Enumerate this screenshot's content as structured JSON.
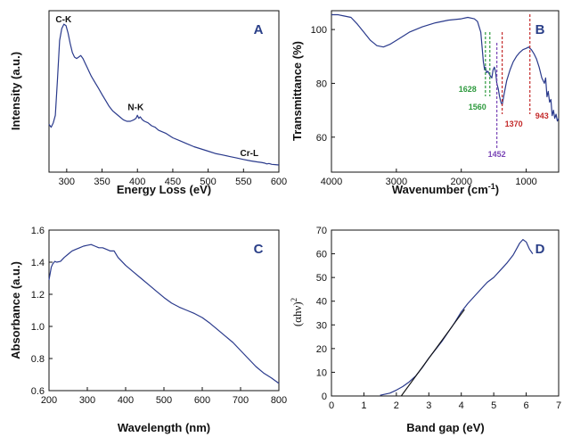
{
  "colors": {
    "line": "#2a3a8c",
    "fit": "#111111",
    "green": "#2e9a3e",
    "red": "#c42a2a",
    "purple": "#7a45b6"
  },
  "chart_data": [
    {
      "id": "A",
      "type": "line",
      "panel_label": "A",
      "xlabel": "Energy Loss (eV)",
      "ylabel": "Intensity (a.u.)",
      "xlim": [
        275,
        600
      ],
      "xticks": [
        300,
        350,
        400,
        450,
        500,
        550,
        600
      ],
      "yticks": [],
      "grid": false,
      "series": [
        {
          "x": [
            275,
            278,
            281,
            284,
            287,
            290,
            293,
            296,
            299,
            302,
            305,
            308,
            311,
            314,
            317,
            320,
            323,
            326,
            329,
            332,
            335,
            340,
            345,
            350,
            355,
            360,
            365,
            370,
            375,
            380,
            385,
            390,
            395,
            398,
            400,
            402,
            404,
            407,
            410,
            415,
            420,
            425,
            430,
            440,
            450,
            460,
            470,
            480,
            490,
            500,
            510,
            520,
            530,
            540,
            550,
            560,
            570,
            575,
            580,
            583,
            586,
            590,
            595,
            600
          ],
          "y": [
            0.32,
            0.3,
            0.33,
            0.38,
            0.62,
            0.88,
            0.96,
            0.99,
            0.98,
            0.93,
            0.86,
            0.8,
            0.77,
            0.76,
            0.77,
            0.78,
            0.76,
            0.73,
            0.7,
            0.67,
            0.64,
            0.6,
            0.56,
            0.52,
            0.48,
            0.44,
            0.41,
            0.39,
            0.37,
            0.35,
            0.34,
            0.34,
            0.35,
            0.36,
            0.38,
            0.36,
            0.37,
            0.35,
            0.34,
            0.33,
            0.31,
            0.3,
            0.28,
            0.26,
            0.23,
            0.21,
            0.19,
            0.17,
            0.155,
            0.14,
            0.125,
            0.115,
            0.105,
            0.095,
            0.085,
            0.075,
            0.068,
            0.065,
            0.06,
            0.055,
            0.058,
            0.052,
            0.05,
            0.048
          ]
        }
      ],
      "annotations": [
        {
          "text": "C-K",
          "x": 302,
          "y": 0.99
        },
        {
          "text": "N-K",
          "x": 404,
          "y": 0.38
        },
        {
          "text": "Cr-L",
          "x": 583,
          "y": 0.06
        }
      ]
    },
    {
      "id": "B",
      "type": "line",
      "panel_label": "B",
      "xlabel": "Wavenumber (cm-1)",
      "ylabel": "Transmittance (%)",
      "xlim": [
        4000,
        500
      ],
      "xticks": [
        4000,
        3000,
        2000,
        1000
      ],
      "ylim": [
        47,
        107
      ],
      "yticks": [
        60,
        80,
        100
      ],
      "grid": false,
      "series": [
        {
          "x": [
            4000,
            3900,
            3800,
            3700,
            3600,
            3500,
            3400,
            3300,
            3200,
            3100,
            3000,
            2900,
            2800,
            2600,
            2400,
            2200,
            2000,
            1900,
            1800,
            1750,
            1700,
            1660,
            1640,
            1628,
            1610,
            1590,
            1560,
            1530,
            1510,
            1490,
            1470,
            1452,
            1430,
            1410,
            1390,
            1370,
            1340,
            1300,
            1250,
            1200,
            1150,
            1100,
            1050,
            1000,
            960,
            943,
            920,
            880,
            840,
            800,
            760,
            720,
            700,
            680,
            660,
            640,
            620,
            600,
            580,
            560,
            540,
            520,
            500
          ],
          "y": [
            105.5,
            105.5,
            105,
            104.5,
            102,
            99,
            96,
            94,
            93.5,
            94.5,
            96,
            97.5,
            99,
            101,
            102.5,
            103.5,
            104,
            104.5,
            104,
            103,
            99,
            88,
            85,
            86,
            84,
            84.5,
            83,
            82,
            85,
            86,
            84,
            80,
            78,
            75,
            73,
            72,
            76,
            81,
            85,
            88,
            90,
            91.5,
            92.5,
            93,
            93.5,
            93,
            92.5,
            91,
            89,
            86,
            82,
            80,
            82,
            75,
            77,
            73,
            74,
            68,
            70,
            67,
            68.5,
            66,
            67
          ]
        }
      ],
      "vlines": [
        {
          "x": 1628,
          "color": "green",
          "text": "1628"
        },
        {
          "x": 1560,
          "color": "green",
          "text": "1560"
        },
        {
          "x": 1452,
          "color": "purple",
          "text": "1452"
        },
        {
          "x": 1370,
          "color": "red",
          "text": "1370"
        },
        {
          "x": 943,
          "color": "red",
          "text": "943"
        }
      ]
    },
    {
      "id": "C",
      "type": "line",
      "panel_label": "C",
      "xlabel": "Wavelength (nm)",
      "ylabel": "Absorbance (a.u.)",
      "xlim": [
        200,
        800
      ],
      "xticks": [
        200,
        300,
        400,
        500,
        600,
        700,
        800
      ],
      "ylim": [
        0.6,
        1.6
      ],
      "yticks": [
        0.6,
        0.8,
        1.0,
        1.2,
        1.4,
        1.6
      ],
      "grid": false,
      "series": [
        {
          "x": [
            200,
            203,
            206,
            210,
            215,
            220,
            230,
            240,
            250,
            260,
            270,
            280,
            290,
            300,
            310,
            320,
            330,
            340,
            350,
            360,
            370,
            380,
            400,
            420,
            440,
            460,
            480,
            500,
            520,
            540,
            560,
            580,
            600,
            620,
            640,
            660,
            680,
            700,
            720,
            740,
            760,
            780,
            800
          ],
          "y": [
            1.29,
            1.33,
            1.37,
            1.39,
            1.405,
            1.4,
            1.405,
            1.43,
            1.45,
            1.47,
            1.48,
            1.49,
            1.5,
            1.505,
            1.51,
            1.5,
            1.49,
            1.49,
            1.48,
            1.47,
            1.47,
            1.43,
            1.38,
            1.34,
            1.3,
            1.26,
            1.22,
            1.18,
            1.145,
            1.12,
            1.1,
            1.08,
            1.055,
            1.02,
            0.98,
            0.94,
            0.9,
            0.85,
            0.8,
            0.75,
            0.71,
            0.68,
            0.645
          ]
        }
      ]
    },
    {
      "id": "D",
      "type": "line",
      "panel_label": "D",
      "xlabel": "Band gap (eV)",
      "ylabel": "(αhν)2",
      "xlim": [
        0,
        7
      ],
      "xticks": [
        0,
        1,
        2,
        3,
        4,
        5,
        6,
        7
      ],
      "ylim": [
        0,
        70
      ],
      "yticks": [
        0,
        10,
        20,
        30,
        40,
        50,
        60,
        70
      ],
      "grid": false,
      "series": [
        {
          "x": [
            1.5,
            1.8,
            2.0,
            2.2,
            2.4,
            2.6,
            2.8,
            3.0,
            3.2,
            3.4,
            3.6,
            3.8,
            4.0,
            4.2,
            4.4,
            4.6,
            4.8,
            5.0,
            5.2,
            5.4,
            5.6,
            5.7,
            5.8,
            5.9,
            6.0,
            6.1,
            6.2
          ],
          "y": [
            0.3,
            1.2,
            2.5,
            4,
            6,
            8.5,
            12,
            16,
            19.5,
            23,
            27,
            31,
            35.5,
            39,
            42,
            45,
            48,
            50,
            53,
            56,
            59.5,
            62,
            64.5,
            66,
            65,
            62,
            60
          ]
        }
      ],
      "fit_line": {
        "x": [
          2.15,
          4.1
        ],
        "y": [
          0,
          36.5
        ]
      }
    }
  ]
}
